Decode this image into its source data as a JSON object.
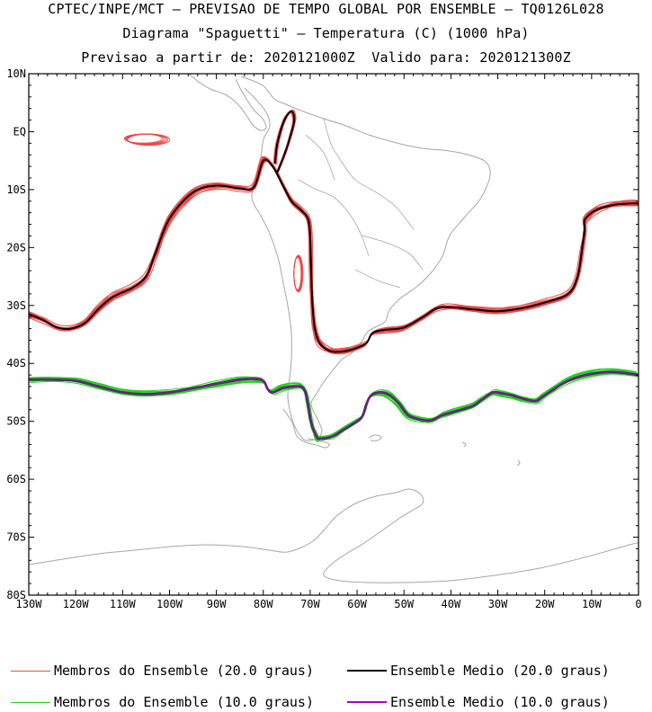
{
  "title": {
    "line1": "CPTEC/INPE/MCT – PREVISAO DE TEMPO GLOBAL POR ENSEMBLE – TQ0126L028",
    "line2": "Diagrama \"Spaguetti\" – Temperatura (C) (1000 hPa)",
    "line3": "Previsao a partir de: 2020121000Z  Valido para: 2020121300Z"
  },
  "axes": {
    "lat_ticks": [
      "10N",
      "EQ",
      "10S",
      "20S",
      "30S",
      "40S",
      "50S",
      "60S",
      "70S",
      "80S"
    ],
    "lon_ticks": [
      "130W",
      "120W",
      "110W",
      "100W",
      "90W",
      "80W",
      "70W",
      "60W",
      "50W",
      "40W",
      "30W",
      "20W",
      "10W",
      "0"
    ],
    "lat_range": [
      10,
      -80
    ],
    "lon_range": [
      -130,
      0
    ]
  },
  "colors": {
    "members_20": "#f04848",
    "mean_20": "#000000",
    "members_10": "#22d022",
    "mean_10": "#a000c8",
    "coast": "#a6a6a6"
  },
  "legend": [
    {
      "label": "Membros do Ensemble (20.0 graus)",
      "color": "#f04848"
    },
    {
      "label": "Ensemble Medio (20.0 graus)",
      "color": "#000000"
    },
    {
      "label": "Membros do Ensemble (10.0 graus)",
      "color": "#22d022"
    },
    {
      "label": "Ensemble Medio (10.0 graus)",
      "color": "#a000c8"
    }
  ],
  "chart_data": {
    "type": "contour",
    "series": [
      {
        "name": "Ensemble Medio (20.0 graus)",
        "lon": [
          -130,
          -127,
          -124,
          -121,
          -118,
          -115,
          -112,
          -108,
          -105,
          -103,
          -100,
          -95,
          -90,
          -85,
          -82,
          -80,
          -78,
          -76,
          -74,
          -72,
          -70.5,
          -70,
          -69.8,
          -69.5,
          -69,
          -68,
          -66,
          -64,
          -62,
          -60,
          -58,
          -57,
          -56,
          -54,
          -50,
          -46,
          -43,
          -40,
          -35,
          -30,
          -25,
          -20,
          -15,
          -13,
          -12,
          -11.5,
          -11.5,
          -10,
          -8,
          -5,
          -2,
          0
        ],
        "lat": [
          -31.5,
          -32.5,
          -33.8,
          -34,
          -33,
          -30.5,
          -28.5,
          -27,
          -25,
          -21,
          -15,
          -10.5,
          -9.3,
          -9.8,
          -9.6,
          -5,
          -6,
          -9,
          -12,
          -13.5,
          -15,
          -18,
          -24,
          -30,
          -34,
          -36.5,
          -37.8,
          -38,
          -37.8,
          -37.3,
          -36.5,
          -35,
          -34.5,
          -34.2,
          -33.8,
          -32,
          -30.5,
          -30.3,
          -30.7,
          -31,
          -30.5,
          -29.5,
          -28,
          -25,
          -20,
          -17,
          -15.3,
          -14,
          -13.2,
          -12.6,
          -12.4,
          -12.4
        ]
      },
      {
        "name": "Ensemble Medio (10.0 graus)",
        "lon": [
          -130,
          -125,
          -120,
          -115,
          -110,
          -105,
          -100,
          -95,
          -90,
          -85,
          -82,
          -80,
          -79,
          -78,
          -76,
          -74,
          -72,
          -71,
          -70.5,
          -70,
          -69.5,
          -69,
          -68.5,
          -68,
          -66,
          -64.5,
          -63,
          -61,
          -59,
          -58,
          -57,
          -55,
          -53,
          -51,
          -49,
          -46,
          -44,
          -42,
          -40,
          -37,
          -35,
          -33,
          -31,
          -29,
          -27,
          -25,
          -22,
          -20,
          -15,
          -10,
          -5,
          0
        ],
        "lat": [
          -42.8,
          -42.8,
          -43,
          -44,
          -45,
          -45.3,
          -45,
          -44.3,
          -43.5,
          -42.8,
          -42.7,
          -43,
          -44.5,
          -45,
          -44.3,
          -44,
          -44,
          -45,
          -47,
          -49.5,
          -51,
          -52,
          -52.8,
          -53,
          -52.8,
          -52.3,
          -51.5,
          -50.5,
          -49.3,
          -47,
          -45.5,
          -45,
          -45.5,
          -47,
          -49,
          -49.8,
          -49.8,
          -49,
          -48.5,
          -47.8,
          -47.2,
          -46,
          -45,
          -45.2,
          -45.5,
          -46,
          -46.5,
          -45.5,
          -43,
          -41.8,
          -41.5,
          -42
        ]
      }
    ]
  }
}
